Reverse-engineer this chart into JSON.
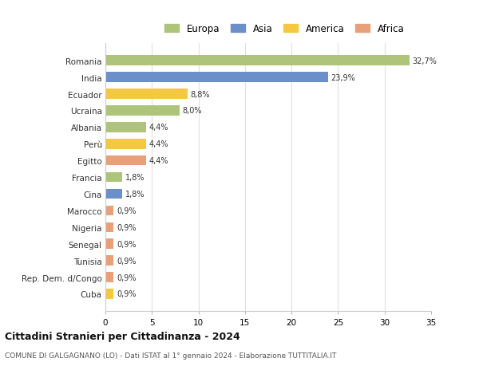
{
  "countries": [
    "Romania",
    "India",
    "Ecuador",
    "Ucraina",
    "Albania",
    "Perù",
    "Egitto",
    "Francia",
    "Cina",
    "Marocco",
    "Nigeria",
    "Senegal",
    "Tunisia",
    "Rep. Dem. d/Congo",
    "Cuba"
  ],
  "values": [
    32.7,
    23.9,
    8.8,
    8.0,
    4.4,
    4.4,
    4.4,
    1.8,
    1.8,
    0.9,
    0.9,
    0.9,
    0.9,
    0.9,
    0.9
  ],
  "labels": [
    "32,7%",
    "23,9%",
    "8,8%",
    "8,0%",
    "4,4%",
    "4,4%",
    "4,4%",
    "1,8%",
    "1,8%",
    "0,9%",
    "0,9%",
    "0,9%",
    "0,9%",
    "0,9%",
    "0,9%"
  ],
  "continents": [
    "Europa",
    "Asia",
    "America",
    "Europa",
    "Europa",
    "America",
    "Africa",
    "Europa",
    "Asia",
    "Africa",
    "Africa",
    "Africa",
    "Africa",
    "Africa",
    "America"
  ],
  "colors": {
    "Europa": "#adc47a",
    "Asia": "#6b8fc9",
    "America": "#f5c842",
    "Africa": "#e8a07a"
  },
  "legend_order": [
    "Europa",
    "Asia",
    "America",
    "Africa"
  ],
  "title": "Cittadini Stranieri per Cittadinanza - 2024",
  "subtitle": "COMUNE DI GALGAGNANO (LO) - Dati ISTAT al 1° gennaio 2024 - Elaborazione TUTTITALIA.IT",
  "xlim": [
    0,
    35
  ],
  "xticks": [
    0,
    5,
    10,
    15,
    20,
    25,
    30,
    35
  ],
  "bg_color": "#ffffff",
  "grid_color": "#e0e0e0"
}
